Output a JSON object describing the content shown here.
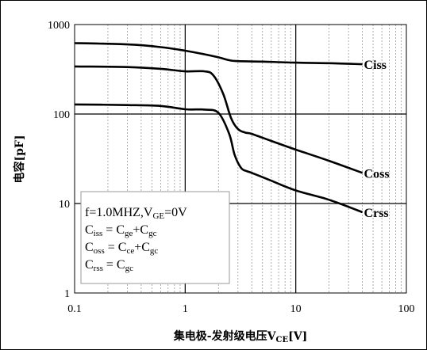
{
  "chart_data": {
    "type": "line",
    "x_scale": "log",
    "y_scale": "log",
    "xlim": [
      0.1,
      100
    ],
    "ylim": [
      1,
      1000
    ],
    "x_ticks": [
      "0.1",
      "1",
      "10",
      "100"
    ],
    "y_ticks": [
      "1",
      "10",
      "100",
      "1000"
    ],
    "grid": "major and minor",
    "xlabel": {
      "main": "集电极-发射级电压V",
      "sub": "CE",
      "tail": "[V]"
    },
    "ylabel": "电容[pF]",
    "annotation": {
      "line1": {
        "pre": "f=1.0MHZ,V",
        "sub": "GE",
        "post": "=0V"
      },
      "line2": {
        "a": "C",
        "a_sub": "iss",
        "eq": " = C",
        "b_sub": "ge",
        "plus": "+C",
        "c_sub": "gc"
      },
      "line3": {
        "a": "C",
        "a_sub": "oss",
        "eq": " = C",
        "b_sub": "ce",
        "plus": "+C",
        "c_sub": "gc"
      },
      "line4": {
        "a": "C",
        "a_sub": "rss",
        "eq": " = C",
        "b_sub": "gc"
      }
    },
    "series": [
      {
        "name": "Ciss",
        "x": [
          0.1,
          0.3,
          0.6,
          1,
          1.5,
          2,
          2.5,
          3,
          5,
          10,
          20,
          40
        ],
        "y": [
          620,
          600,
          560,
          510,
          465,
          430,
          400,
          390,
          385,
          375,
          370,
          360
        ]
      },
      {
        "name": "Coss",
        "x": [
          0.1,
          0.3,
          0.6,
          1,
          1.5,
          1.8,
          2.2,
          2.6,
          3,
          3.5,
          4,
          6,
          10,
          20,
          40
        ],
        "y": [
          340,
          335,
          320,
          300,
          300,
          270,
          170,
          90,
          68,
          62,
          60,
          50,
          40,
          30,
          22
        ]
      },
      {
        "name": "Crss",
        "x": [
          0.1,
          0.3,
          0.6,
          1,
          1.5,
          2,
          2.5,
          2.8,
          3.2,
          3.6,
          4,
          6,
          10,
          20,
          40
        ],
        "y": [
          128,
          126,
          123,
          113,
          112,
          103,
          60,
          35,
          25,
          23,
          22,
          18,
          14,
          11,
          8
        ]
      }
    ]
  }
}
